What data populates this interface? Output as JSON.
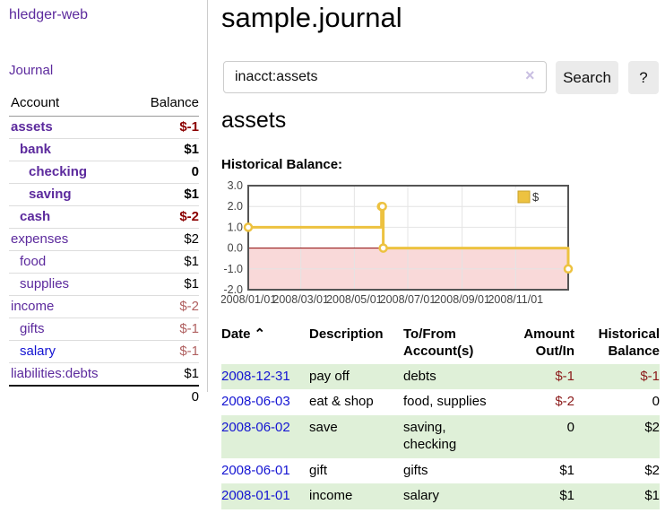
{
  "colors": {
    "purple_link": "#5c2a9d",
    "blue_link": "#1414d2",
    "negative_strong": "#8b0000",
    "negative_muted": "#b06060",
    "table_stripe_green": "#dff0d8",
    "chart_line_yellow": "#EDC240",
    "chart_negative_fill": "#f9d9d9",
    "chart_zero_line_red": "#8b0000"
  },
  "sidebar": {
    "brand": "hledger-web",
    "journal_link": "Journal",
    "accounts": {
      "col_account": "Account",
      "col_balance": "Balance",
      "rows": [
        {
          "name": "assets",
          "balance": "$-1",
          "indent": 0,
          "bold": true,
          "balance_class": "neg-strong",
          "link_class": ""
        },
        {
          "name": "bank",
          "balance": "$1",
          "indent": 1,
          "bold": true,
          "balance_class": "",
          "link_class": ""
        },
        {
          "name": "checking",
          "balance": "0",
          "indent": 2,
          "bold": true,
          "balance_class": "",
          "link_class": ""
        },
        {
          "name": "saving",
          "balance": "$1",
          "indent": 2,
          "bold": true,
          "balance_class": "",
          "link_class": ""
        },
        {
          "name": "cash",
          "balance": "$-2",
          "indent": 1,
          "bold": true,
          "balance_class": "neg-strong",
          "link_class": ""
        },
        {
          "name": "expenses",
          "balance": "$2",
          "indent": 0,
          "bold": false,
          "balance_class": "",
          "link_class": ""
        },
        {
          "name": "food",
          "balance": "$1",
          "indent": 1,
          "bold": false,
          "balance_class": "",
          "link_class": ""
        },
        {
          "name": "supplies",
          "balance": "$1",
          "indent": 1,
          "bold": false,
          "balance_class": "",
          "link_class": ""
        },
        {
          "name": "income",
          "balance": "$-2",
          "indent": 0,
          "bold": false,
          "balance_class": "neg-muted",
          "link_class": ""
        },
        {
          "name": "gifts",
          "balance": "$-1",
          "indent": 1,
          "bold": false,
          "balance_class": "neg-muted",
          "link_class": ""
        },
        {
          "name": "salary",
          "balance": "$-1",
          "indent": 1,
          "bold": false,
          "balance_class": "neg-muted",
          "link_class": "blue"
        },
        {
          "name": "liabilities:debts",
          "balance": "$1",
          "indent": 0,
          "bold": false,
          "balance_class": "",
          "link_class": ""
        }
      ],
      "total": "0"
    }
  },
  "main": {
    "title": "sample.journal",
    "search": {
      "value": "inacct:assets",
      "clear": "×",
      "button": "Search",
      "help": "?"
    },
    "account_heading": "assets",
    "chart_label": "Historical Balance:"
  },
  "chart_data": {
    "type": "line",
    "style": "step",
    "title": "Historical Balance",
    "series": [
      {
        "name": "$",
        "points": [
          [
            "2008-01-01",
            1
          ],
          [
            "2008-06-01",
            2
          ],
          [
            "2008-06-02",
            2
          ],
          [
            "2008-06-03",
            0
          ],
          [
            "2008-12-31",
            -1
          ]
        ]
      }
    ],
    "x_range": [
      "2008-01-01",
      "2008-12-31"
    ],
    "x_ticks": [
      "2008/01/01",
      "2008/03/01",
      "2008/05/01",
      "2008/07/01",
      "2008/09/01",
      "2008/11/01"
    ],
    "y_ticks": [
      3.0,
      2.0,
      1.0,
      0.0,
      -1.0,
      -2.0
    ],
    "ylim": [
      -2,
      3
    ],
    "grid": true,
    "legend": {
      "label": "$",
      "position": "top-right"
    },
    "negative_region_shaded": true
  },
  "transactions": {
    "headers": [
      {
        "line1": "Date",
        "line2": "",
        "align": "left",
        "sort": "⌃"
      },
      {
        "line1": "Description",
        "line2": "",
        "align": "left",
        "sort": ""
      },
      {
        "line1": "To/From",
        "line2": "Account(s)",
        "align": "left",
        "sort": ""
      },
      {
        "line1": "Amount",
        "line2": "Out/In",
        "align": "right",
        "sort": ""
      },
      {
        "line1": "Historical",
        "line2": "Balance",
        "align": "right",
        "sort": ""
      }
    ],
    "rows": [
      {
        "date": "2008-12-31",
        "description": "pay off",
        "accounts": "debts",
        "amount": "$-1",
        "amount_neg": true,
        "balance": "$-1",
        "balance_neg": true
      },
      {
        "date": "2008-06-03",
        "description": "eat & shop",
        "accounts": "food, supplies",
        "amount": "$-2",
        "amount_neg": true,
        "balance": "0",
        "balance_neg": false
      },
      {
        "date": "2008-06-02",
        "description": "save",
        "accounts": "saving,\nchecking",
        "amount": "0",
        "amount_neg": false,
        "balance": "$2",
        "balance_neg": false
      },
      {
        "date": "2008-06-01",
        "description": "gift",
        "accounts": "gifts",
        "amount": "$1",
        "amount_neg": false,
        "balance": "$2",
        "balance_neg": false
      },
      {
        "date": "2008-01-01",
        "description": "income",
        "accounts": "salary",
        "amount": "$1",
        "amount_neg": false,
        "balance": "$1",
        "balance_neg": false
      }
    ]
  }
}
